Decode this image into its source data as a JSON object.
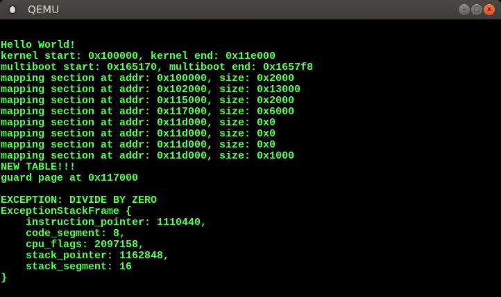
{
  "window": {
    "title": "QEMU",
    "minimize_label": "–",
    "maximize_label": "□",
    "close_label": "x"
  },
  "console": {
    "color": "#55ff55",
    "lines": [
      "Hello World!",
      "kernel start: 0x100000, kernel end: 0x11e000",
      "multiboot start: 0x165170, multiboot end: 0x1657f8",
      "mapping section at addr: 0x100000, size: 0x2000",
      "mapping section at addr: 0x102000, size: 0x13000",
      "mapping section at addr: 0x115000, size: 0x2000",
      "mapping section at addr: 0x117000, size: 0x6000",
      "mapping section at addr: 0x11d000, size: 0x0",
      "mapping section at addr: 0x11d000, size: 0x0",
      "mapping section at addr: 0x11d000, size: 0x0",
      "mapping section at addr: 0x11d000, size: 0x1000",
      "NEW TABLE!!!",
      "guard page at 0x117000",
      "",
      "EXCEPTION: DIVIDE BY ZERO",
      "ExceptionStackFrame {",
      "    instruction_pointer: 1110440,",
      "    code_segment: 8,",
      "    cpu_flags: 2097158,",
      "    stack_pointer: 1162848,",
      "    stack_segment: 16",
      "}"
    ]
  }
}
